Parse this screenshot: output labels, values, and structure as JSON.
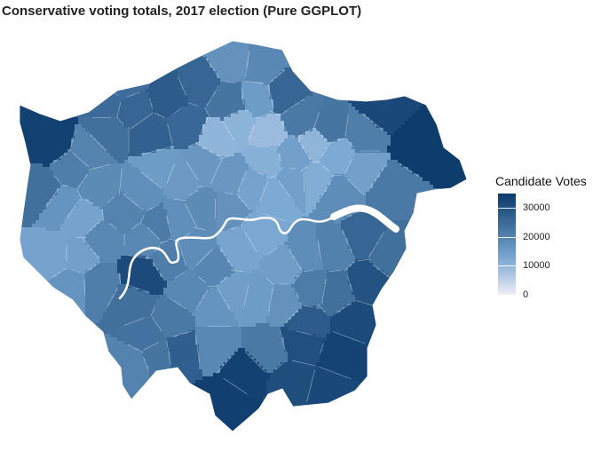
{
  "title": "Conservative voting totals, 2017 election (Pure GGPLOT)",
  "legend": {
    "title": "Candidate Votes",
    "min": 0,
    "max": 35000,
    "breaks": [
      {
        "value": 30000,
        "label": "30000"
      },
      {
        "value": 20000,
        "label": "20000"
      },
      {
        "value": 10000,
        "label": "10000"
      },
      {
        "value": 0,
        "label": "0"
      }
    ],
    "color_low": "#efedf7",
    "color_mid": "#7ba9d3",
    "color_high": "#0b3a6b"
  },
  "colors": {
    "background": "#ffffff",
    "boundary": "#ffffff",
    "river": "#ffffff"
  }
}
